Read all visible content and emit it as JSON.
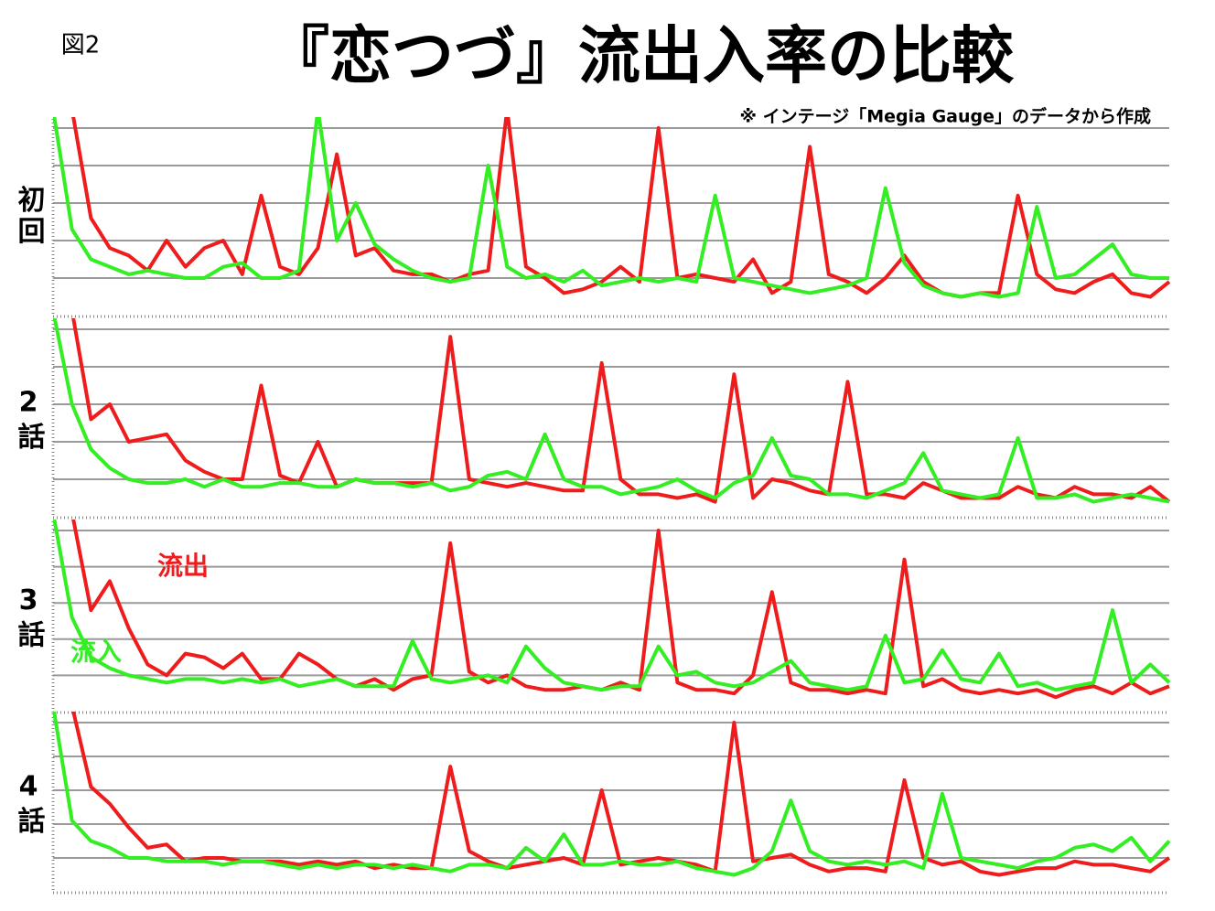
{
  "header": {
    "figure_label": "図2",
    "title": "『恋つづ』流出入率の比較",
    "note": "※ インテージ「Megia Gauge」のデータから作成"
  },
  "chart_data": [
    {
      "type": "line",
      "title": "初回",
      "ylim": [
        0,
        5
      ],
      "yticks": [
        1,
        2,
        3,
        4,
        5
      ],
      "grid": true,
      "categories": [
        null,
        null,
        null,
        null,
        null,
        null,
        null,
        null,
        null,
        null,
        null,
        null,
        null,
        null,
        null,
        null,
        null,
        null,
        null,
        null,
        null,
        null,
        null,
        null,
        null,
        null,
        null,
        null,
        null,
        null,
        null,
        null,
        null,
        null,
        null,
        null,
        null,
        null,
        null,
        null,
        null,
        null,
        null,
        null,
        null,
        null,
        null,
        null,
        null,
        null,
        null,
        null,
        null,
        null,
        null,
        null,
        null,
        null,
        null,
        null
      ],
      "series": [
        {
          "color": "#ee1c1c",
          "values": [
            null,
            5.5,
            2.6,
            1.8,
            1.6,
            1.2,
            2.0,
            1.3,
            1.8,
            2.0,
            1.1,
            3.2,
            1.3,
            1.1,
            1.8,
            4.3,
            1.6,
            1.8,
            1.2,
            1.1,
            1.1,
            0.9,
            1.1,
            1.2,
            5.5,
            1.3,
            1.0,
            0.6,
            0.7,
            0.9,
            1.3,
            0.9,
            5.0,
            1.0,
            1.1,
            1.0,
            0.9,
            1.5,
            0.6,
            0.9,
            4.5,
            1.1,
            0.9,
            0.6,
            1.0,
            1.6,
            0.9,
            0.6,
            0.5,
            0.6,
            0.6,
            3.2,
            1.1,
            0.7,
            0.6,
            0.9,
            1.1,
            0.6,
            0.5,
            0.9
          ]
        },
        {
          "color": "#33ee22",
          "values": [
            5.5,
            2.3,
            1.5,
            1.3,
            1.1,
            1.2,
            1.1,
            1.0,
            1.0,
            1.3,
            1.4,
            1.0,
            1.0,
            1.2,
            5.5,
            2.0,
            3.0,
            1.9,
            1.5,
            1.2,
            1.0,
            0.9,
            1.0,
            4.0,
            1.3,
            1.0,
            1.1,
            0.9,
            1.2,
            0.8,
            0.9,
            1.0,
            0.9,
            1.0,
            0.9,
            3.2,
            1.0,
            0.9,
            0.8,
            0.7,
            0.6,
            0.7,
            0.8,
            1.0,
            3.4,
            1.4,
            0.8,
            0.6,
            0.5,
            0.6,
            0.5,
            0.6,
            2.9,
            1.0,
            1.1,
            1.5,
            1.9,
            1.1,
            1.0,
            1.0
          ]
        }
      ]
    },
    {
      "type": "line",
      "title": "2話",
      "ylim": [
        0,
        5
      ],
      "yticks": [
        1,
        2,
        3,
        4,
        5
      ],
      "grid": true,
      "categories": [
        null,
        null,
        null,
        null,
        null,
        null,
        null,
        null,
        null,
        null,
        null,
        null,
        null,
        null,
        null,
        null,
        null,
        null,
        null,
        null,
        null,
        null,
        null,
        null,
        null,
        null,
        null,
        null,
        null,
        null,
        null,
        null,
        null,
        null,
        null,
        null,
        null,
        null,
        null,
        null,
        null,
        null,
        null,
        null,
        null,
        null,
        null,
        null,
        null,
        null,
        null,
        null,
        null,
        null,
        null,
        null,
        null,
        null,
        null,
        null
      ],
      "series": [
        {
          "color": "#ee1c1c",
          "values": [
            null,
            5.5,
            2.6,
            3.0,
            2.0,
            2.1,
            2.2,
            1.5,
            1.2,
            1.0,
            1.0,
            3.5,
            1.1,
            0.9,
            2.0,
            0.8,
            1.0,
            0.9,
            0.9,
            0.9,
            0.9,
            4.8,
            1.0,
            0.9,
            0.8,
            0.9,
            0.8,
            0.7,
            0.7,
            4.1,
            1.0,
            0.6,
            0.6,
            0.5,
            0.6,
            0.4,
            3.8,
            0.5,
            1.0,
            0.9,
            0.7,
            0.6,
            3.6,
            0.6,
            0.6,
            0.5,
            0.9,
            0.7,
            0.5,
            0.5,
            0.5,
            0.8,
            0.6,
            0.5,
            0.8,
            0.6,
            0.6,
            0.5,
            0.8,
            0.4
          ]
        },
        {
          "color": "#33ee22",
          "values": [
            5.5,
            3.0,
            1.8,
            1.3,
            1.0,
            0.9,
            0.9,
            1.0,
            0.8,
            1.0,
            0.8,
            0.8,
            0.9,
            0.9,
            0.8,
            0.8,
            1.0,
            0.9,
            0.9,
            0.8,
            0.9,
            0.7,
            0.8,
            1.1,
            1.2,
            1.0,
            2.2,
            1.0,
            0.8,
            0.8,
            0.6,
            0.7,
            0.8,
            1.0,
            0.7,
            0.5,
            0.9,
            1.1,
            2.1,
            1.1,
            1.0,
            0.6,
            0.6,
            0.5,
            0.7,
            0.9,
            1.7,
            0.7,
            0.6,
            0.5,
            0.6,
            2.1,
            0.5,
            0.5,
            0.6,
            0.4,
            0.5,
            0.6,
            0.5,
            0.4
          ]
        }
      ]
    },
    {
      "type": "line",
      "title": "3話",
      "ylim": [
        0,
        5
      ],
      "yticks": [
        1,
        2,
        3,
        4,
        5
      ],
      "grid": true,
      "categories": [
        null,
        null,
        null,
        null,
        null,
        null,
        null,
        null,
        null,
        null,
        null,
        null,
        null,
        null,
        null,
        null,
        null,
        null,
        null,
        null,
        null,
        null,
        null,
        null,
        null,
        null,
        null,
        null,
        null,
        null,
        null,
        null,
        null,
        null,
        null,
        null,
        null,
        null,
        null,
        null,
        null,
        null,
        null,
        null,
        null,
        null,
        null,
        null,
        null,
        null,
        null,
        null,
        null,
        null,
        null,
        null,
        null,
        null,
        null,
        null
      ],
      "series": [
        {
          "name": "流出",
          "color": "#ee1c1c",
          "values": [
            null,
            5.5,
            2.8,
            3.6,
            2.3,
            1.3,
            1.0,
            1.6,
            1.5,
            1.2,
            1.6,
            0.9,
            0.9,
            1.6,
            1.3,
            0.9,
            0.7,
            0.9,
            0.6,
            0.9,
            1.0,
            4.65,
            1.1,
            0.8,
            1.0,
            0.7,
            0.6,
            0.6,
            0.7,
            0.6,
            0.8,
            0.6,
            5.0,
            0.8,
            0.6,
            0.6,
            0.5,
            1.0,
            3.3,
            0.8,
            0.6,
            0.6,
            0.5,
            0.6,
            0.5,
            4.2,
            0.7,
            0.9,
            0.6,
            0.5,
            0.6,
            0.5,
            0.6,
            0.4,
            0.6,
            0.7,
            0.5,
            0.8,
            0.5,
            0.7
          ]
        },
        {
          "name": "流入",
          "color": "#33ee22",
          "values": [
            5.5,
            2.6,
            1.5,
            1.2,
            1.0,
            0.9,
            0.8,
            0.9,
            0.9,
            0.8,
            0.9,
            0.8,
            0.9,
            0.7,
            0.8,
            0.9,
            0.7,
            0.7,
            0.7,
            1.95,
            0.9,
            0.8,
            0.9,
            1.0,
            0.8,
            1.8,
            1.2,
            0.8,
            0.7,
            0.6,
            0.7,
            0.7,
            1.8,
            1.0,
            1.1,
            0.8,
            0.7,
            0.8,
            1.1,
            1.4,
            0.8,
            0.7,
            0.6,
            0.7,
            2.1,
            0.8,
            0.9,
            1.7,
            0.9,
            0.8,
            1.6,
            0.7,
            0.8,
            0.6,
            0.7,
            0.8,
            2.8,
            0.8,
            1.3,
            0.8
          ]
        }
      ]
    },
    {
      "type": "line",
      "title": "4話",
      "ylim": [
        0,
        5
      ],
      "yticks": [
        1,
        2,
        3,
        4,
        5
      ],
      "grid": true,
      "categories": [
        null,
        null,
        null,
        null,
        null,
        null,
        null,
        null,
        null,
        null,
        null,
        null,
        null,
        null,
        null,
        null,
        null,
        null,
        null,
        null,
        null,
        null,
        null,
        null,
        null,
        null,
        null,
        null,
        null,
        null,
        null,
        null,
        null,
        null,
        null,
        null,
        null,
        null,
        null,
        null,
        null,
        null,
        null,
        null,
        null,
        null,
        null,
        null,
        null,
        null,
        null,
        null,
        null,
        null,
        null,
        null,
        null,
        null,
        null,
        null
      ],
      "series": [
        {
          "color": "#ee1c1c",
          "values": [
            null,
            5.5,
            3.1,
            2.6,
            1.9,
            1.3,
            1.4,
            0.9,
            1.0,
            1.0,
            0.9,
            0.9,
            0.9,
            0.8,
            0.9,
            0.8,
            0.9,
            0.7,
            0.8,
            0.7,
            0.7,
            3.7,
            1.2,
            0.9,
            0.7,
            0.8,
            0.9,
            1.0,
            0.8,
            3.0,
            0.8,
            0.9,
            1.0,
            0.9,
            0.8,
            0.6,
            5.0,
            0.9,
            1.0,
            1.1,
            0.8,
            0.6,
            0.7,
            0.7,
            0.6,
            3.3,
            1.0,
            0.8,
            0.9,
            0.6,
            0.5,
            0.6,
            0.7,
            0.7,
            0.9,
            0.8,
            0.8,
            0.7,
            0.6,
            1.0
          ]
        },
        {
          "color": "#33ee22",
          "values": [
            5.5,
            2.1,
            1.5,
            1.3,
            1.0,
            1.0,
            0.9,
            0.9,
            0.9,
            0.8,
            0.9,
            0.9,
            0.8,
            0.7,
            0.8,
            0.7,
            0.8,
            0.8,
            0.7,
            0.8,
            0.7,
            0.6,
            0.8,
            0.8,
            0.7,
            1.3,
            0.9,
            1.7,
            0.8,
            0.8,
            0.9,
            0.8,
            0.8,
            0.9,
            0.7,
            0.6,
            0.5,
            0.7,
            1.2,
            2.7,
            1.2,
            0.9,
            0.8,
            0.9,
            0.8,
            0.9,
            0.7,
            2.9,
            1.0,
            0.9,
            0.8,
            0.7,
            0.9,
            1.0,
            1.3,
            1.4,
            1.2,
            1.6,
            0.9,
            1.5
          ]
        }
      ]
    }
  ]
}
